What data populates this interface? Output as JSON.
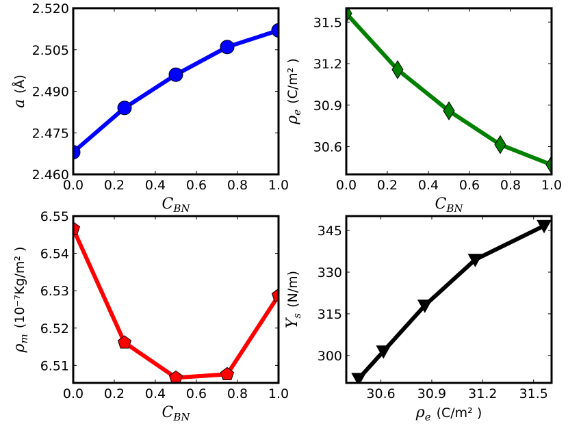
{
  "chart_data": [
    {
      "type": "line",
      "x": [
        0.0,
        0.25,
        0.5,
        0.75,
        1.0
      ],
      "values": [
        2.468,
        2.484,
        2.496,
        2.506,
        2.512
      ],
      "xlabel_main": "C",
      "xlabel_sub": "BN",
      "ylabel_main": "a",
      "ylabel_unit": "(Å)",
      "xlim": [
        0,
        1
      ],
      "ylim": [
        2.46,
        2.52
      ],
      "xticks": [
        "0.0",
        "0.2",
        "0.4",
        "0.6",
        "0.8",
        "1.0"
      ],
      "yticks": [
        "2.460",
        "2.475",
        "2.490",
        "2.505",
        "2.520"
      ],
      "color": "#0000ff",
      "marker": "circle"
    },
    {
      "type": "line",
      "x": [
        0.0,
        0.25,
        0.5,
        0.75,
        1.0
      ],
      "values": [
        31.562,
        31.156,
        30.859,
        30.615,
        30.469
      ],
      "xlabel_main": "C",
      "xlabel_sub": "BN",
      "ylabel_main": "ρ",
      "ylabel_sub": "e",
      "ylabel_unit": "(C/m² )",
      "xlim": [
        0,
        1
      ],
      "ylim": [
        30.4,
        31.6
      ],
      "xticks": [
        "0.0",
        "0.2",
        "0.4",
        "0.6",
        "0.8",
        "1.0"
      ],
      "yticks": [
        "30.6",
        "30.9",
        "31.2",
        "31.5"
      ],
      "color": "#008000",
      "marker": "diamond"
    },
    {
      "type": "line",
      "x": [
        0.0,
        0.25,
        0.5,
        0.75,
        1.0
      ],
      "values": [
        6.5466,
        6.5161,
        6.5067,
        6.5076,
        6.5287
      ],
      "xlabel_main": "C",
      "xlabel_sub": "BN",
      "ylabel_main": "ρ",
      "ylabel_sub": "m",
      "ylabel_unit": "(10⁻⁷Kg/m² )",
      "xlim": [
        0,
        1
      ],
      "ylim": [
        6.5053,
        6.55
      ],
      "xticks": [
        "0.0",
        "0.2",
        "0.4",
        "0.6",
        "0.8",
        "1.0"
      ],
      "yticks": [
        "6.51",
        "6.52",
        "6.53",
        "6.54",
        "6.55"
      ],
      "color": "#ff0000",
      "marker": "pentagon"
    },
    {
      "type": "line",
      "x": [
        30.469,
        30.615,
        30.859,
        31.156,
        31.562
      ],
      "values": [
        291.6,
        301.5,
        318.0,
        334.5,
        346.7
      ],
      "xlabel_main": "ρ",
      "xlabel_sub": "e",
      "xlabel_unit": "(C/m² )",
      "ylabel_main": "Y",
      "ylabel_sub": "s",
      "ylabel_unit": "(N/m)",
      "xlim": [
        30.396,
        31.606
      ],
      "ylim": [
        290.1,
        350.2
      ],
      "xticks": [
        "30.6",
        "30.9",
        "31.2",
        "31.5"
      ],
      "yticks": [
        "300",
        "315",
        "330",
        "345"
      ],
      "color": "#000000",
      "marker": "triangle-down"
    }
  ]
}
